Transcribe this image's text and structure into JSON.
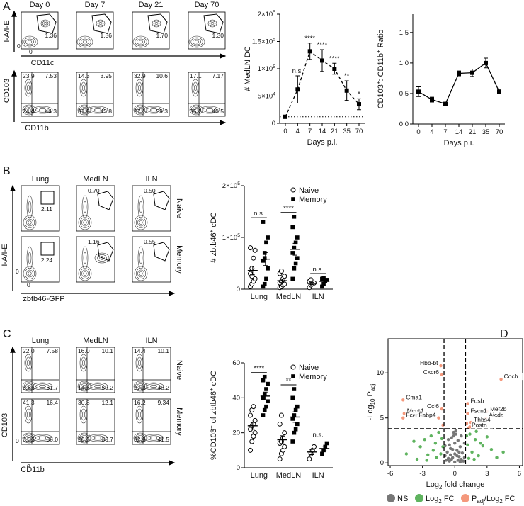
{
  "panel_labels": [
    "A",
    "B",
    "C",
    "D"
  ],
  "flow": {
    "zero": "0",
    "A_gate": {
      "columns": [
        "Day 0",
        "Day 7",
        "Day 21",
        "Day 70"
      ],
      "values": [
        "1.36",
        "1.36",
        "1.70",
        "1.30"
      ],
      "x_label": "CD11c",
      "y_label": "I-A/I-E"
    },
    "A_quadrant": {
      "quadrants": [
        [
          "23.9",
          "7.53",
          "24.4",
          "44.3"
        ],
        [
          "14.3",
          "3.95",
          "37.9",
          "43.8"
        ],
        [
          "32.9",
          "10.6",
          "27.1",
          "29.3"
        ],
        [
          "17.1",
          "7.17",
          "35.2",
          "40.5"
        ]
      ],
      "x_label": "CD11b",
      "y_label": "CD103"
    },
    "B": {
      "columns": [
        "Lung",
        "MedLN",
        "ILN"
      ],
      "rows": [
        "Naive",
        "Memory"
      ],
      "gates": [
        [
          "2.11",
          "0.70",
          "0.50"
        ],
        [
          "2.24",
          "1.16",
          "0.55"
        ]
      ],
      "x_label": "zbtb46-GFP",
      "y_label": "I-A/I-E"
    },
    "C": {
      "columns": [
        "Lung",
        "MedLN",
        "ILN"
      ],
      "rows": [
        "Naive",
        "Memory"
      ],
      "quadrants": [
        [
          [
            "22.0",
            "7.58",
            "8.66",
            "61.7"
          ],
          [
            "16.0",
            "10.1",
            "14.6",
            "59.2"
          ],
          [
            "14.4",
            "10.1",
            "27.3",
            "48.2"
          ]
        ],
        [
          [
            "41.3",
            "16.4",
            "6.35",
            "36.0"
          ],
          [
            "30.8",
            "12.1",
            "20.5",
            "36.7"
          ],
          [
            "16.2",
            "9.34",
            "32.9",
            "41.5"
          ]
        ]
      ],
      "x_label": "CD11b",
      "y_label": "CD103"
    }
  },
  "chart_data": [
    {
      "type": "line",
      "y_label": "# MedLN DC",
      "x_label": "Days p.i.",
      "categories": [
        "0",
        "4",
        "7",
        "14",
        "21",
        "35",
        "70"
      ],
      "values": [
        12000,
        62000,
        132000,
        115000,
        100000,
        60000,
        35000
      ],
      "errors": [
        3000,
        25000,
        15000,
        20000,
        10000,
        18000,
        10000
      ],
      "significance": [
        null,
        "n.s.",
        "****",
        "****",
        "****",
        "**",
        "*"
      ],
      "reference_line": 12000,
      "line_style": "dashed",
      "color": "#000000",
      "ylim": [
        0,
        200000
      ],
      "yticks": [
        0,
        {
          "value": 50000,
          "label": "5×10",
          "exp": "4"
        },
        {
          "value": 100000,
          "label": "1×10",
          "exp": "5"
        },
        {
          "value": 150000,
          "label": "1.5×10",
          "exp": "5"
        },
        {
          "value": 200000,
          "label": "2×10",
          "exp": "5"
        }
      ]
    },
    {
      "type": "line",
      "y_label": [
        {
          "text": "CD103"
        },
        {
          "text": "+",
          "pos": "sup"
        },
        {
          "text": ": CD11b"
        },
        {
          "text": "+",
          "pos": "sup"
        },
        {
          "text": " Ratio"
        }
      ],
      "x_label": "Days p.i.",
      "categories": [
        "0",
        "4",
        "7",
        "14",
        "21",
        "35",
        "70"
      ],
      "values": [
        0.53,
        0.4,
        0.33,
        0.83,
        0.84,
        1.0,
        0.53
      ],
      "errors": [
        0.08,
        0.04,
        0.02,
        0.04,
        0.06,
        0.08,
        0.03
      ],
      "line_style": "solid",
      "color": "#000000",
      "ylim": [
        0,
        1.8
      ],
      "yticks": [
        {
          "value": 0,
          "label": "0.0"
        },
        0.5,
        {
          "value": 1,
          "label": "1.0"
        },
        1.5
      ]
    },
    {
      "type": "dot",
      "y_label": [
        {
          "text": "# zbtb46"
        },
        {
          "text": "+",
          "pos": "sup"
        },
        {
          "text": " cDC"
        }
      ],
      "categories": [
        "Lung",
        "MedLN",
        "ILN"
      ],
      "significance": [
        "n.s.",
        "****",
        "n.s."
      ],
      "legend": "upper right",
      "series": [
        {
          "name": "Naive",
          "marker": "circle",
          "values": [
            [
              5000,
              10000,
              15000,
              20000,
              30000,
              40000,
              60000,
              75000,
              80000,
              25000
            ],
            [
              3000,
              5000,
              8000,
              10000,
              12000,
              15000,
              20000,
              25000,
              30000,
              35000
            ],
            [
              3000,
              8000,
              10000,
              12000,
              15000,
              18000
            ]
          ],
          "means": [
            36000,
            16300,
            11000
          ],
          "sems": [
            8500,
            3200,
            2200
          ]
        },
        {
          "name": "Memory",
          "marker": "square",
          "values": [
            [
              5000,
              10000,
              20000,
              40000,
              55000,
              70000,
              90000,
              100000,
              130000,
              60000
            ],
            [
              20000,
              40000,
              50000,
              60000,
              70000,
              80000,
              90000,
              100000,
              120000,
              140000
            ],
            [
              5000,
              10000,
              15000,
              18000,
              20000,
              22000
            ]
          ],
          "means": [
            58000,
            77000,
            15000
          ],
          "sems": [
            12500,
            11500,
            2700
          ]
        }
      ],
      "ylim": [
        0,
        200000
      ],
      "yticks": [
        0,
        {
          "value": 100000,
          "label": "1×10",
          "exp": "5"
        },
        {
          "value": 200000,
          "label": "2×10",
          "exp": "5"
        }
      ]
    },
    {
      "type": "dot",
      "y_label": [
        {
          "text": "%CD103"
        },
        {
          "text": "+",
          "pos": "sup"
        },
        {
          "text": " of zbtb46"
        },
        {
          "text": "+",
          "pos": "sup"
        },
        {
          "text": " cDC"
        }
      ],
      "categories": [
        "Lung",
        "MedLN",
        "ILN"
      ],
      "significance": [
        "****",
        "**",
        "n.s."
      ],
      "legend": "upper right",
      "series": [
        {
          "name": "Naive",
          "marker": "circle",
          "values": [
            [
              10,
              15,
              18,
              20,
              22,
              24,
              25,
              27,
              30,
              33,
              35
            ],
            [
              5,
              8,
              10,
              12,
              14,
              15,
              17,
              20,
              25,
              30
            ],
            [
              5,
              8,
              10,
              12
            ]
          ],
          "means": [
            24,
            16,
            9
          ],
          "sems": [
            2,
            2.3,
            1.5
          ]
        },
        {
          "name": "Memory",
          "marker": "square",
          "values": [
            [
              30,
              33,
              35,
              38,
              40,
              42,
              45,
              48,
              50,
              52
            ],
            [
              15,
              20,
              22,
              25,
              28,
              30,
              33,
              35,
              40,
              45
            ],
            [
              8,
              10,
              12,
              14
            ]
          ],
          "means": [
            41,
            29,
            11
          ],
          "sems": [
            2.3,
            3,
            1.3
          ]
        }
      ],
      "ylim": [
        0,
        60
      ],
      "yticks": [
        0,
        20,
        40,
        60
      ]
    },
    {
      "type": "volcano",
      "x_label": [
        {
          "text": "Log"
        },
        {
          "text": "2",
          "pos": "sub"
        },
        {
          "text": " fold change"
        }
      ],
      "y_label": [
        {
          "text": "-Log"
        },
        {
          "text": "10",
          "pos": "sub"
        },
        {
          "text": " P"
        },
        {
          "text": "adj",
          "pos": "sub"
        }
      ],
      "xlim": [
        -6.2,
        6.3
      ],
      "ylim": [
        -0.3,
        13.8
      ],
      "xticks": [
        -6,
        -3,
        0,
        3,
        6
      ],
      "yticks": [
        0,
        5,
        10
      ],
      "x_thresholds": [
        -1,
        1
      ],
      "y_threshold": 3.8,
      "legend": "bottom",
      "series": [
        {
          "name": [
            {
              "text": "NS"
            }
          ],
          "color": "#777777",
          "x": [
            -0.9,
            -0.7,
            -0.5,
            -0.3,
            -0.1,
            0.1,
            0.3,
            0.5,
            0.7,
            0.9,
            -0.8,
            -0.6,
            -0.4,
            -0.2,
            0,
            0.2,
            0.4,
            0.6,
            0.8,
            -0.5,
            -0.3,
            0,
            0.3,
            0.5,
            -0.2,
            0.2,
            0,
            -0.1,
            0.1,
            -0.4,
            0.4,
            0.6,
            -0.6,
            0.9,
            -0.9
          ],
          "y": [
            0.8,
            1.2,
            2.0,
            2.8,
            3.4,
            3.2,
            2.5,
            1.8,
            1.1,
            0.6,
            0.3,
            0.5,
            0.9,
            1.5,
            2.2,
            1.4,
            0.7,
            0.4,
            0.2,
            0.2,
            0.4,
            0.1,
            0.3,
            0.1,
            0.6,
            0.8,
            1.0,
            3.0,
            3.6,
            1.6,
            1.2,
            3.0,
            2.6,
            2.2,
            1.9
          ]
        },
        {
          "name": [
            {
              "text": "Log"
            },
            {
              "text": "2",
              "pos": "sub"
            },
            {
              "text": " FC"
            }
          ],
          "color": "#5fb35f",
          "x": [
            -4.5,
            -3.8,
            -3.2,
            -2.8,
            -2.5,
            -2.2,
            -2.0,
            -1.8,
            -1.5,
            -1.3,
            -1.2,
            -3.5,
            -2.6,
            -1.7,
            1.2,
            1.4,
            1.6,
            1.9,
            2.2,
            2.6,
            3.0,
            3.4,
            3.9,
            4.5,
            2.0,
            1.3,
            1.8,
            2.4,
            -1.1,
            1.1
          ],
          "y": [
            1.0,
            2.4,
            1.8,
            2.6,
            0.9,
            3.0,
            1.4,
            2.2,
            3.4,
            1.0,
            2.7,
            0.4,
            0.3,
            0.6,
            2.0,
            3.2,
            1.2,
            2.6,
            0.8,
            1.9,
            2.9,
            1.5,
            0.6,
            1.2,
            3.5,
            0.5,
            0.4,
            2.2,
            1.8,
            3.0
          ]
        },
        {
          "name": [
            {
              "text": "P"
            },
            {
              "text": "adj",
              "pos": "sub"
            },
            {
              "text": "/Log"
            },
            {
              "text": "2",
              "pos": "sub"
            },
            {
              "text": " FC"
            }
          ],
          "color": "#f4987c",
          "x": [
            -1.3,
            -1.2,
            -4.8,
            -1.2,
            -4.7,
            -4.8,
            -1.5,
            4.3,
            1.2,
            3.0,
            1.2,
            2.9,
            1.5,
            1.3,
            -1.1,
            1.1,
            1.4
          ],
          "y": [
            10.8,
            9.8,
            7.0,
            6.0,
            5.5,
            5.0,
            5.0,
            9.3,
            6.6,
            5.7,
            5.5,
            5.0,
            4.5,
            3.9,
            4.2,
            4.4,
            4.0
          ],
          "labels": [
            "Hbb-bt",
            "Cxcr6",
            "Cma1",
            "Ccl6",
            "Mcpt4",
            "Fcer1a",
            "Fabp4",
            "Coch",
            "Fosb",
            "Mef2b",
            "Fscn1",
            "Aicda",
            "Thbs4",
            "Postn",
            null,
            null,
            null
          ]
        }
      ]
    }
  ]
}
